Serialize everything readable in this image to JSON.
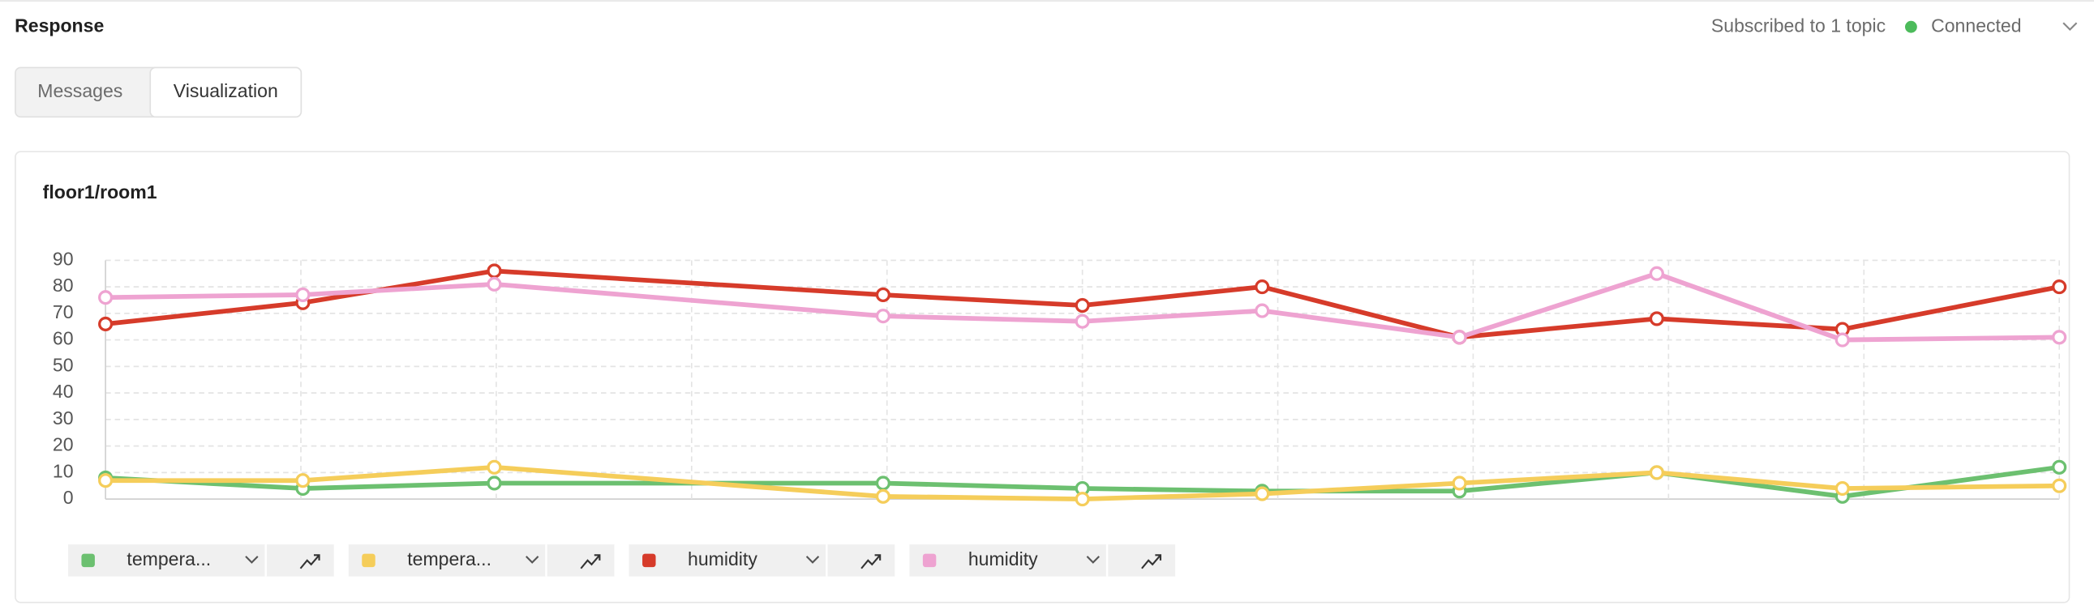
{
  "header": {
    "title": "Response",
    "status_text": "Subscribed to 1 topic",
    "connection": "Connected"
  },
  "tabs": [
    "Messages",
    "Visualization"
  ],
  "chart_data": {
    "type": "line",
    "title": "floor1/room1",
    "x": [
      0,
      1.01,
      1.99,
      3.98,
      5.0,
      5.92,
      6.93,
      7.94,
      8.89,
      10
    ],
    "xlim": [
      0,
      10
    ],
    "xticks": [
      0,
      1,
      2,
      3,
      4,
      5,
      6,
      7,
      8,
      9,
      10
    ],
    "ylim": [
      0,
      90
    ],
    "yticks": [
      0,
      10,
      20,
      30,
      40,
      50,
      60,
      70,
      80,
      90
    ],
    "grid": true,
    "series": [
      {
        "name": "tempera...",
        "color": "#6cc070",
        "values": [
          8,
          4,
          6,
          6,
          4,
          3,
          3,
          10,
          1,
          12
        ]
      },
      {
        "name": "tempera...",
        "color": "#f5cd5a",
        "values": [
          7,
          7,
          12,
          1,
          0,
          2,
          6,
          10,
          4,
          5
        ]
      },
      {
        "name": "humidity",
        "color": "#d63b2a",
        "values": [
          66,
          74,
          86,
          77,
          73,
          80,
          61,
          68,
          64,
          80
        ]
      },
      {
        "name": "humidity",
        "color": "#eea3d1",
        "values": [
          76,
          77,
          81,
          69,
          67,
          71,
          61,
          85,
          60,
          61
        ]
      }
    ]
  }
}
